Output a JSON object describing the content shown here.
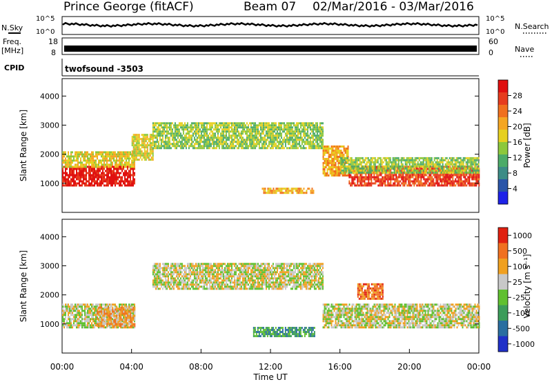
{
  "header": {
    "station": "Prince George (fitACF)",
    "beam": "Beam 07",
    "date_range": "02/Mar/2016 - 03/Mar/2016"
  },
  "strips": {
    "nsky_label": "N.Sky",
    "nsky_ticks": [
      "10^5",
      "10^0"
    ],
    "nsearch_label": "N.Search",
    "nsearch_ticks": [
      "10^5",
      "10^0"
    ],
    "freq_label_1": "Freq.",
    "freq_label_2": "[MHz]",
    "freq_ticks": [
      "18",
      "8"
    ],
    "nave_label": "Nave",
    "nave_ticks": [
      "60",
      "0"
    ],
    "cpid_label": "CPID",
    "cpid_value": "twofsound -3503"
  },
  "chart_data": [
    {
      "type": "heatmap",
      "title": "",
      "ylabel": "Slant Range [km]",
      "xlabel": "Time UT",
      "ylim": [
        0,
        4600
      ],
      "xlim": [
        0,
        24
      ],
      "yticks": [
        "1000",
        "2000",
        "3000",
        "4000"
      ],
      "colorbar_label": "Power [dB]",
      "colorbar_ticks": [
        "4",
        "8",
        "12",
        "16",
        "20",
        "24",
        "28"
      ],
      "colorbar_colors": [
        "#1e22e8",
        "#2a55a8",
        "#3c8c86",
        "#4cab68",
        "#8cc83c",
        "#e6d020",
        "#f5a623",
        "#f0701e",
        "#e63c1e",
        "#e01010"
      ],
      "bands": [
        {
          "t0": 0.0,
          "t1": 4.2,
          "r0": 900,
          "r1": 1600,
          "level": 9
        },
        {
          "t0": 0.0,
          "t1": 4.2,
          "r0": 1600,
          "r1": 2100,
          "level": 5
        },
        {
          "t0": 4.0,
          "t1": 5.2,
          "r0": 1800,
          "r1": 2700,
          "level": 5
        },
        {
          "t0": 5.2,
          "t1": 15.0,
          "r0": 2200,
          "r1": 3100,
          "level": 4
        },
        {
          "t0": 11.5,
          "t1": 14.5,
          "r0": 650,
          "r1": 850,
          "level": 6
        },
        {
          "t0": 15.0,
          "t1": 16.5,
          "r0": 1300,
          "r1": 2300,
          "level": 6
        },
        {
          "t0": 16.5,
          "t1": 24.0,
          "r0": 900,
          "r1": 1600,
          "level": 8
        },
        {
          "t0": 16.0,
          "t1": 24.0,
          "r0": 1400,
          "r1": 1900,
          "level": 4
        }
      ]
    },
    {
      "type": "heatmap",
      "title": "",
      "ylabel": "Slant Range [km]",
      "xlabel": "Time UT",
      "ylim": [
        0,
        4600
      ],
      "xlim": [
        0,
        24
      ],
      "yticks": [
        "1000",
        "2000",
        "3000",
        "4000"
      ],
      "xticks": [
        "00:00",
        "04:00",
        "08:00",
        "12:00",
        "16:00",
        "20:00",
        "00:00"
      ],
      "colorbar_label": "Velocity [m s⁻¹]",
      "colorbar_ticks": [
        "1000",
        "500",
        "100",
        "25",
        "-25",
        "-100",
        "-500",
        "-1000"
      ],
      "colorbar_colors": [
        "#2030c8",
        "#2a6ea0",
        "#3c9c5a",
        "#60c030",
        "#c8c8c8",
        "#f0a020",
        "#f07020",
        "#e02010"
      ],
      "bands": [
        {
          "t0": 0.0,
          "t1": 4.2,
          "r0": 900,
          "r1": 1700,
          "level": 4
        },
        {
          "t0": 2.0,
          "t1": 4.2,
          "r0": 900,
          "r1": 1600,
          "level": 5
        },
        {
          "t0": 5.2,
          "t1": 15.0,
          "r0": 2200,
          "r1": 3100,
          "level": 4
        },
        {
          "t0": 11.0,
          "t1": 14.5,
          "r0": 600,
          "r1": 900,
          "level": 2
        },
        {
          "t0": 15.0,
          "t1": 24.0,
          "r0": 900,
          "r1": 1700,
          "level": 4
        },
        {
          "t0": 17.0,
          "t1": 18.5,
          "r0": 1900,
          "r1": 2400,
          "level": 6
        }
      ]
    }
  ]
}
